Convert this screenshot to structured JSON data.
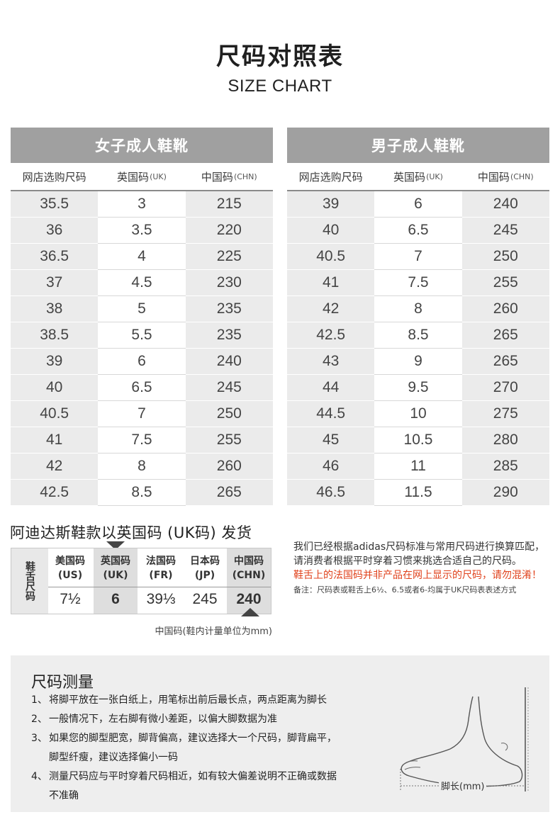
{
  "title": "尺码对照表",
  "subtitle": "SIZE CHART",
  "women": {
    "title": "女子成人鞋靴",
    "headers": [
      {
        "main": "网店选购尺码",
        "sub": ""
      },
      {
        "main": "英国码",
        "sub": "(UK)"
      },
      {
        "main": "中国码",
        "sub": "(CHN)"
      }
    ],
    "rows": [
      [
        "35.5",
        "3",
        "215"
      ],
      [
        "36",
        "3.5",
        "220"
      ],
      [
        "36.5",
        "4",
        "225"
      ],
      [
        "37",
        "4.5",
        "230"
      ],
      [
        "38",
        "5",
        "235"
      ],
      [
        "38.5",
        "5.5",
        "235"
      ],
      [
        "39",
        "6",
        "240"
      ],
      [
        "40",
        "6.5",
        "245"
      ],
      [
        "40.5",
        "7",
        "250"
      ],
      [
        "41",
        "7.5",
        "255"
      ],
      [
        "42",
        "8",
        "260"
      ],
      [
        "42.5",
        "8.5",
        "265"
      ]
    ]
  },
  "men": {
    "title": "男子成人鞋靴",
    "headers": [
      {
        "main": "网店选购尺码",
        "sub": ""
      },
      {
        "main": "英国码",
        "sub": "(UK)"
      },
      {
        "main": "中国码",
        "sub": "(CHN)"
      }
    ],
    "rows": [
      [
        "39",
        "6",
        "240"
      ],
      [
        "40",
        "6.5",
        "245"
      ],
      [
        "40.5",
        "7",
        "250"
      ],
      [
        "41",
        "7.5",
        "255"
      ],
      [
        "42",
        "8",
        "260"
      ],
      [
        "42.5",
        "8.5",
        "265"
      ],
      [
        "43",
        "9",
        "265"
      ],
      [
        "44",
        "9.5",
        "270"
      ],
      [
        "44.5",
        "10",
        "275"
      ],
      [
        "45",
        "10.5",
        "280"
      ],
      [
        "46",
        "11",
        "285"
      ],
      [
        "46.5",
        "11.5",
        "290"
      ]
    ]
  },
  "shipping": "阿迪达斯鞋款以英国码 (UK码) 发货",
  "tongue": {
    "label": "鞋舌尺码",
    "columns": [
      {
        "h1": "美国码",
        "h2": "(US)",
        "value": "7½"
      },
      {
        "h1": "英国码",
        "h2": "(UK)",
        "value": "6"
      },
      {
        "h1": "法国码",
        "h2": "(FR)",
        "value": "39⅓"
      },
      {
        "h1": "日本码",
        "h2": "(JP)",
        "value": "245"
      },
      {
        "h1": "中国码",
        "h2": "(CHN)",
        "value": "240"
      }
    ],
    "chn_note": "中国码(鞋内计量单位为mm)"
  },
  "notes": {
    "p1": "我们已经根据adidas尺码标准与常用尺码进行换算匹配，请消费者根据平时穿着习惯来挑选合适自己的尺码。",
    "p2_red": "鞋舌上的法国码并非产品在网上显示的尺码，请勿混淆！",
    "p2_small": "备注：尺码表或鞋舌上6½、6.5或者6-均属于UK尺码表表述方式"
  },
  "measure": {
    "title": "尺码测量",
    "items": [
      {
        "num": "1、",
        "lines": [
          "将脚平放在一张白纸上，用笔标出前后最长点，两点距离为脚长"
        ]
      },
      {
        "num": "2、",
        "lines": [
          "一般情况下，左右脚有微小差距，以偏大脚数据为准"
        ]
      },
      {
        "num": "3、",
        "lines": [
          "如果您的脚型肥宽，脚背偏高，建议选择大一个尺码，脚背扁平，",
          "脚型纤瘦，建议选择偏小一码"
        ]
      },
      {
        "num": "4、",
        "lines": [
          "测量尺码应与平时穿着尺码相近，如有较大偏差说明不正确或数据",
          "不准确"
        ]
      }
    ],
    "foot_label": "脚长(mm)"
  },
  "colors": {
    "header_bg": "#a0a0a0",
    "stripe_gray": "#ebebeb",
    "warning_red": "#e0421c",
    "panel_bg": "#eeeeee"
  }
}
